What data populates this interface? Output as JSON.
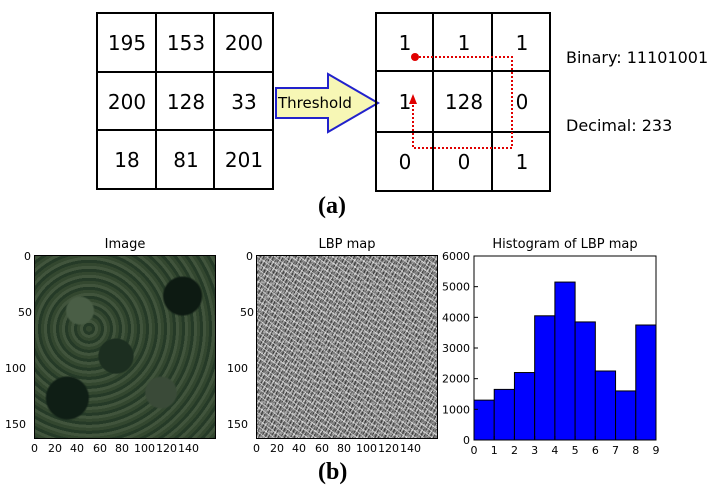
{
  "part_a": {
    "input_grid": [
      [
        "195",
        "153",
        "200"
      ],
      [
        "200",
        "128",
        "33"
      ],
      [
        "18",
        "81",
        "201"
      ]
    ],
    "arrow_label": "Threshold",
    "output_grid": [
      [
        "1",
        "1",
        "1"
      ],
      [
        "1",
        "128",
        "0"
      ],
      [
        "0",
        "0",
        "1"
      ]
    ],
    "binary_label": "Binary: 11101001",
    "decimal_label": "Decimal: 233",
    "caption": "(a)",
    "colors": {
      "arrow_fill": "#f7f7b5",
      "arrow_stroke": "#2222cc",
      "path": "#e00000"
    }
  },
  "part_b": {
    "caption": "(b)",
    "image_panel": {
      "title": "Image",
      "y_ticks": [
        "0",
        "50",
        "100",
        "150"
      ],
      "x_ticks": [
        "0",
        "20",
        "40",
        "60",
        "80",
        "100",
        "120",
        "140"
      ]
    },
    "lbp_panel": {
      "title": "LBP map",
      "y_ticks": [
        "0",
        "50",
        "100",
        "150"
      ],
      "x_ticks": [
        "0",
        "20",
        "40",
        "60",
        "80",
        "100",
        "120",
        "140"
      ]
    }
  },
  "chart_data": {
    "type": "bar",
    "title": "Histogram of LBP map",
    "xlabel": "",
    "ylabel": "",
    "bin_edges": [
      0,
      1,
      2,
      3,
      4,
      5,
      6,
      7,
      8,
      9
    ],
    "values": [
      1300,
      1650,
      2200,
      4050,
      5150,
      3850,
      2250,
      1600,
      3750
    ],
    "xlim": [
      0,
      9
    ],
    "ylim": [
      0,
      6000
    ],
    "x_ticks": [
      "0",
      "1",
      "2",
      "3",
      "4",
      "5",
      "6",
      "7",
      "8",
      "9"
    ],
    "y_ticks": [
      "0",
      "1000",
      "2000",
      "3000",
      "4000",
      "5000",
      "6000"
    ],
    "bar_color": "#0000ff",
    "grid": false
  }
}
